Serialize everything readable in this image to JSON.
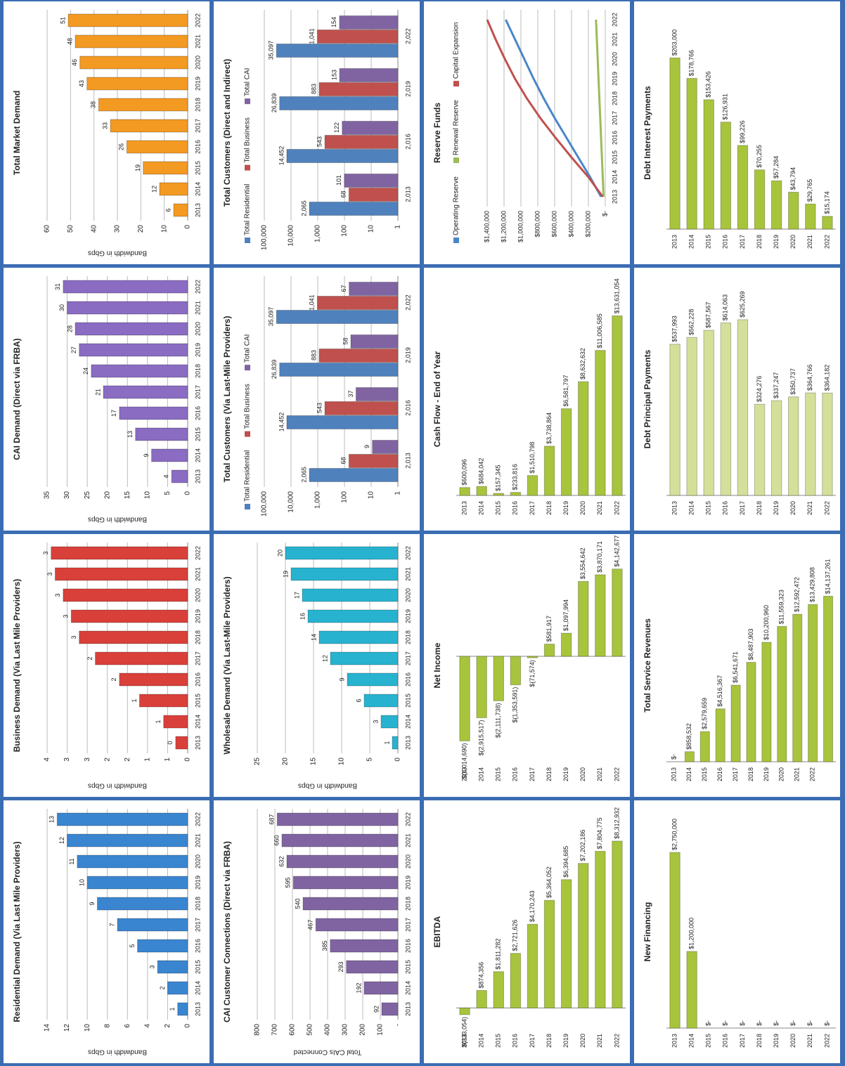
{
  "chart_data": [
    {
      "type": "bar",
      "title": "Residential Demand (Via Last Mile Providers)",
      "y_label": "Bandwidth in Gbps",
      "categories": [
        "2013",
        "2014",
        "2015",
        "2016",
        "2017",
        "2018",
        "2019",
        "2020",
        "2021",
        "2022"
      ],
      "values": [
        1,
        2,
        3,
        5,
        7,
        9,
        10,
        11,
        12,
        13
      ],
      "color": "#3a85d0",
      "ylim": [
        0,
        14
      ],
      "yticks": [
        0,
        2,
        4,
        6,
        8,
        10,
        12,
        14
      ],
      "grid": true
    },
    {
      "type": "bar",
      "title": "Business Demand (Via Last Mile Providers)",
      "y_label": "Bandwidth in Gbps",
      "categories": [
        "2013",
        "2014",
        "2015",
        "2016",
        "2017",
        "2018",
        "2019",
        "2020",
        "2021",
        "2022"
      ],
      "values": [
        0.3,
        0.6,
        1.2,
        1.7,
        2.3,
        2.7,
        2.9,
        3.1,
        3.3,
        3.4
      ],
      "value_labels": [
        "0",
        "1",
        "1",
        "2",
        "2",
        "3",
        "3",
        "3",
        "3",
        "3"
      ],
      "color": "#d9403a",
      "ylim": [
        0,
        3.5
      ],
      "yticks": [
        0,
        {
          "value": 0.5,
          "label": "1"
        },
        1,
        {
          "value": 1.5,
          "label": "2"
        },
        2,
        {
          "value": 2.5,
          "label": "3"
        },
        3,
        {
          "value": 3.5,
          "label": "4"
        }
      ],
      "grid": true
    },
    {
      "type": "bar",
      "title": "CAI Demand (Direct via FRBA)",
      "y_label": "Bandwidth in Gbps",
      "categories": [
        "2013",
        "2014",
        "2015",
        "2016",
        "2017",
        "2018",
        "2019",
        "2020",
        "2021",
        "2022"
      ],
      "values": [
        4,
        9,
        13,
        17,
        21,
        24,
        27,
        28,
        30,
        31
      ],
      "color": "#8a6cc2",
      "ylim": [
        0,
        35
      ],
      "yticks": [
        0,
        5,
        10,
        15,
        20,
        25,
        30,
        35
      ],
      "grid": true
    },
    {
      "type": "bar",
      "title": "Total Market Demand",
      "y_label": "Bandwidth in Gbps",
      "categories": [
        "2013",
        "2014",
        "2015",
        "2016",
        "2017",
        "2018",
        "2019",
        "2020",
        "2021",
        "2022"
      ],
      "values": [
        6,
        12,
        19,
        26,
        33,
        38,
        43,
        46,
        48,
        51
      ],
      "color": "#f39a22",
      "ylim": [
        0,
        60
      ],
      "yticks": [
        0,
        10,
        20,
        30,
        40,
        50,
        60
      ],
      "grid": true
    },
    {
      "type": "bar",
      "title": "CAI Customer Connections (Direct via FRBA)",
      "y_label": "Total CAIs Connected",
      "categories": [
        "2013",
        "2014",
        "2015",
        "2016",
        "2017",
        "2018",
        "2019",
        "2020",
        "2021",
        "2022"
      ],
      "values": [
        92,
        192,
        293,
        385,
        467,
        540,
        595,
        632,
        660,
        687
      ],
      "color": "#8064a2",
      "ylim": [
        0,
        800
      ],
      "yticks": [
        {
          "value": 0,
          "label": "-"
        },
        100,
        200,
        300,
        400,
        500,
        600,
        700,
        800
      ],
      "grid": true
    },
    {
      "type": "bar",
      "title": "Wholesale Demand (Via Last-Mile Providers)",
      "y_label": "Bandwidth in Gbps",
      "categories": [
        "2013",
        "2014",
        "2015",
        "2016",
        "2017",
        "2018",
        "2019",
        "2020",
        "2021",
        "2022"
      ],
      "values": [
        1,
        3,
        6,
        9,
        12,
        14,
        16,
        17,
        19,
        20
      ],
      "color": "#27b3cf",
      "ylim": [
        0,
        25
      ],
      "yticks": [
        0,
        5,
        10,
        15,
        20,
        25
      ],
      "grid": true
    },
    {
      "type": "bar",
      "title": "Total Customers (Via Last-Mile Providers)",
      "categories": [
        "2,013",
        "2,016",
        "2,019",
        "2,022"
      ],
      "log_scale": true,
      "legend": "top",
      "ylim": [
        1,
        100000
      ],
      "yticks": [
        1,
        10,
        100,
        {
          "value": 1000,
          "label": "1,000"
        },
        {
          "value": 10000,
          "label": "10,000"
        },
        {
          "value": 100000,
          "label": "100,000"
        }
      ],
      "grid": true,
      "series": [
        {
          "name": "Total Residential",
          "color": "#4f81bd",
          "values": [
            2065,
            14452,
            26839,
            35097
          ],
          "value_labels": [
            "2,065",
            "14,452",
            "26,839",
            "35,097"
          ]
        },
        {
          "name": "Total Business",
          "color": "#c0504d",
          "values": [
            68,
            543,
            883,
            1041
          ],
          "value_labels": [
            "68",
            "543",
            "883",
            "1,041"
          ]
        },
        {
          "name": "Total CAI",
          "color": "#8064a2",
          "values": [
            9,
            37,
            58,
            67
          ]
        }
      ]
    },
    {
      "type": "bar",
      "title": "Total Customers (Direct and Indirect)",
      "categories": [
        "2,013",
        "2,016",
        "2,019",
        "2,022"
      ],
      "log_scale": true,
      "legend": "top",
      "ylim": [
        1,
        100000
      ],
      "yticks": [
        1,
        10,
        100,
        {
          "value": 1000,
          "label": "1,000"
        },
        {
          "value": 10000,
          "label": "10,000"
        },
        {
          "value": 100000,
          "label": "100,000"
        }
      ],
      "grid": true,
      "series": [
        {
          "name": "Total Residential",
          "color": "#4f81bd",
          "values": [
            2065,
            14452,
            26839,
            35097
          ],
          "value_labels": [
            "2,065",
            "14,452",
            "26,839",
            "35,097"
          ]
        },
        {
          "name": "Total Business",
          "color": "#c0504d",
          "values": [
            68,
            543,
            883,
            1041
          ],
          "value_labels": [
            "68",
            "543",
            "883",
            "1,041"
          ]
        },
        {
          "name": "Total CAI",
          "color": "#8064a2",
          "values": [
            101,
            122,
            153,
            154
          ]
        }
      ]
    },
    {
      "type": "bar",
      "orientation": "horizontal",
      "title": "EBITDA",
      "categories": [
        "2013",
        "2014",
        "2015",
        "2016",
        "2017",
        "2018",
        "2019",
        "2020",
        "2021",
        "2022"
      ],
      "values": [
        -333054,
        874356,
        1811282,
        2721626,
        4170243,
        5364052,
        6394685,
        7202186,
        7804775,
        8312932
      ],
      "value_labels": [
        "$(333,054)",
        "$874,356",
        "$1,811,282",
        "$2,721,626",
        "$4,170,243",
        "$5,364,052",
        "$6,394,685",
        "$7,202,186",
        "$7,804,775",
        "$8,312,932"
      ],
      "color": "#a8c43c",
      "xlim": [
        -1000000,
        9500000
      ]
    },
    {
      "type": "bar",
      "orientation": "horizontal",
      "title": "Net Income",
      "categories": [
        "2013",
        "2014",
        "2015",
        "2016",
        "2017",
        "2018",
        "2019",
        "2020",
        "2021",
        "2022"
      ],
      "values": [
        -4014690,
        -2915517,
        -2111738,
        -1353591,
        -71574,
        581917,
        1097994,
        3554642,
        3870171,
        4142677
      ],
      "value_labels": [
        "$(4,014,690)",
        "$(2,915,517)",
        "$(2,111,738)",
        "$(1,353,591)",
        "$(71,574)",
        "$581,917",
        "$1,097,994",
        "$3,554,642",
        "$3,870,171",
        "$4,142,677"
      ],
      "color": "#a8c43c",
      "xlim": [
        -5000000,
        5000000
      ]
    },
    {
      "type": "bar",
      "orientation": "horizontal",
      "title": "Cash Flow - End of Year",
      "categories": [
        "2013",
        "2014",
        "2015",
        "2016",
        "2017",
        "2018",
        "2019",
        "2020",
        "2021",
        "2022"
      ],
      "values": [
        600096,
        684042,
        157345,
        233816,
        1510798,
        3738864,
        6581797,
        8632632,
        11006585,
        13631054
      ],
      "value_labels": [
        "$600,096",
        "$684,042",
        "$157,345",
        "$233,816",
        "$1,510,798",
        "$3,738,864",
        "$6,581,797",
        "$8,632,632",
        "$11,006,585",
        "$13,631,054"
      ],
      "color": "#a8c43c",
      "xlim": [
        0,
        16000000
      ]
    },
    {
      "type": "line",
      "title": "Reserve Funds",
      "legend": "top",
      "categories": [
        "2013",
        "2014",
        "2015",
        "2016",
        "2017",
        "2018",
        "2019",
        "2020",
        "2021",
        "2022"
      ],
      "ylim": [
        0,
        1400000
      ],
      "yticks": [
        {
          "value": 0,
          "label": "$-"
        },
        {
          "value": 200000,
          "label": "$200,000"
        },
        {
          "value": 400000,
          "label": "$400,000"
        },
        {
          "value": 600000,
          "label": "$600,000"
        },
        {
          "value": 800000,
          "label": "$800,000"
        },
        {
          "value": 1000000,
          "label": "$1,000,000"
        },
        {
          "value": 1200000,
          "label": "$1,200,000"
        },
        {
          "value": 1400000,
          "label": "$1,400,000"
        }
      ],
      "grid": true,
      "series": [
        {
          "name": "Operating Reserve",
          "color": "#4a86c8",
          "values": [
            50000,
            180000,
            320000,
            460000,
            600000,
            730000,
            850000,
            960000,
            1070000,
            1180000
          ]
        },
        {
          "name": "Renewal Reserve",
          "color": "#9bbb59",
          "values": [
            20000,
            30000,
            40000,
            50000,
            60000,
            70000,
            80000,
            90000,
            100000,
            110000
          ]
        },
        {
          "name": "Capital Expansion",
          "color": "#c0504d",
          "values": [
            30000,
            200000,
            400000,
            590000,
            770000,
            930000,
            1070000,
            1190000,
            1300000,
            1400000
          ]
        }
      ]
    },
    {
      "type": "bar",
      "orientation": "horizontal",
      "title": "New Financing",
      "categories": [
        "2013",
        "2014",
        "2015",
        "2016",
        "2017",
        "2018",
        "2019",
        "2020",
        "2021",
        "2022"
      ],
      "values": [
        2750000,
        1200000,
        0,
        0,
        0,
        0,
        0,
        0,
        0,
        0
      ],
      "value_labels": [
        "$2,750,000",
        "$1,200,000",
        "$-",
        "$-",
        "$-",
        "$-",
        "$-",
        "$-",
        "$-",
        "$-"
      ],
      "color": "#a8c43c",
      "xlim": [
        0,
        3300000
      ]
    },
    {
      "type": "bar",
      "orientation": "horizontal",
      "title": "Total Service Revenues",
      "categories": [
        "2013",
        "2014",
        "2015",
        "2016",
        "2017",
        "2018",
        "2019",
        "2020",
        "2021",
        "2022",
        null
      ],
      "values": [
        0,
        858532,
        2579659,
        4516367,
        6541671,
        8487903,
        10200960,
        11559323,
        12592472,
        13429808,
        14137261
      ],
      "value_labels": [
        "$-",
        "$858,532",
        "$2,579,659",
        "$4,516,367",
        "$6,541,671",
        "$8,487,903",
        "$10,200,960",
        "$11,559,323",
        "$12,592,472",
        "$13,429,808",
        "$14,137,261"
      ],
      "color": "#a8c43c",
      "xlim": [
        0,
        18000000
      ]
    },
    {
      "type": "bar",
      "orientation": "horizontal",
      "title": "Debt Principal Payments",
      "categories": [
        "2013",
        "2014",
        "2015",
        "2016",
        "2017",
        "2018",
        "2019",
        "2020",
        "2021",
        "2022"
      ],
      "values": [
        537993,
        562228,
        587567,
        614063,
        625269,
        324276,
        337247,
        350737,
        364766,
        364182
      ],
      "value_labels": [
        "$537,993",
        "$562,228",
        "$587,567",
        "$614,063",
        "$625,269",
        "$324,276",
        "$337,247",
        "$350,737",
        "$364,766",
        "$364,182"
      ],
      "color": "#d4e09a",
      "xlim": [
        0,
        750000
      ]
    },
    {
      "type": "bar",
      "orientation": "horizontal",
      "title": "Debt Interest Payments",
      "categories": [
        "2013",
        "2014",
        "2015",
        "2016",
        "2017",
        "2018",
        "2019",
        "2020",
        "2021",
        "2022"
      ],
      "values": [
        203000,
        178766,
        153426,
        126931,
        99226,
        70255,
        57284,
        43794,
        29765,
        15174
      ],
      "value_labels": [
        "$203,000",
        "$178,766",
        "$153,426",
        "$126,931",
        "$99,226",
        "$70,255",
        "$57,284",
        "$43,794",
        "$29,765",
        "$15,174"
      ],
      "color": "#a8c43c",
      "xlim": [
        0,
        250000
      ]
    }
  ]
}
